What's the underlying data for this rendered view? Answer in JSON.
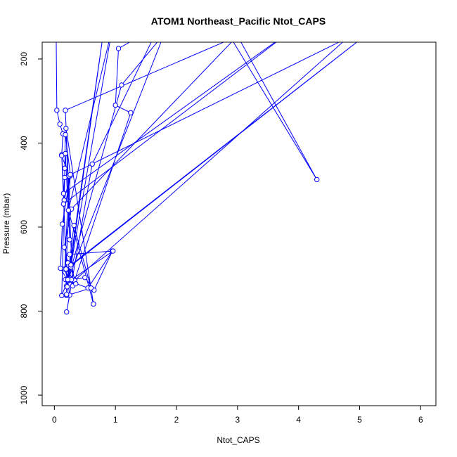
{
  "chart_data": {
    "type": "line",
    "title": "ATOM1 Northeast_Pacific Ntot_CAPS",
    "xlabel": "Ntot_CAPS",
    "ylabel": "Pressure (mbar)",
    "xlim": [
      -0.2,
      6.25
    ],
    "ylim": [
      1025,
      160
    ],
    "y_reversed": true,
    "xticks": [
      0,
      1,
      2,
      3,
      4,
      5,
      6
    ],
    "yticks": [
      200,
      400,
      600,
      800,
      1000
    ],
    "grid": false,
    "legend": "none",
    "colors": {
      "series": "#0000ff",
      "axis": "#000000",
      "background": "#ffffff"
    },
    "series": [
      {
        "x": [
          0.03,
          0.04,
          0.09,
          0.14,
          0.12,
          0.16,
          0.26,
          0.13,
          0.1,
          0.22,
          0.25,
          0.2,
          0.62,
          1.72,
          1.05,
          1.0,
          1.25,
          0.3,
          0.18,
          2.9,
          4.3,
          3.0,
          0.28,
          0.16,
          0.22,
          0.27,
          0.18,
          0.55,
          0.95,
          0.65,
          0.5,
          0.25,
          0.2,
          0.32,
          0.6,
          0.2,
          0.22,
          1.1,
          1.8,
          0.12,
          0.17,
          4.8,
          0.33,
          0.25,
          0.96,
          0.28,
          0.2,
          0.35,
          0.27,
          5.2,
          0.2,
          0.2,
          0.8,
          0.22,
          0.17,
          0.24,
          0.12,
          0.21,
          0.95,
          0.23,
          0.64,
          0.19,
          0.25,
          0.18,
          0.15,
          3.95,
          0.15,
          0.19,
          0.26,
          0.18,
          0.17
        ],
        "y": [
          157,
          322,
          355,
          378,
          428,
          536,
          478,
          593,
          698,
          728,
          762,
          802,
          450,
          120,
          175,
          310,
          328,
          740,
          322,
          152,
          487,
          145,
          557,
          648,
          685,
          695,
          725,
          745,
          657,
          750,
          720,
          727,
          740,
          596,
          745,
          763,
          727,
          262,
          140,
          763,
          482,
          150,
          727,
          665,
          657,
          725,
          700,
          735,
          690,
          132,
          700,
          760,
          140,
          725,
          700,
          478,
          430,
          742,
          125,
          560,
          783,
          365,
          630,
          425,
          545,
          125,
          520,
          700,
          475,
          380,
          460
        ]
      }
    ]
  }
}
